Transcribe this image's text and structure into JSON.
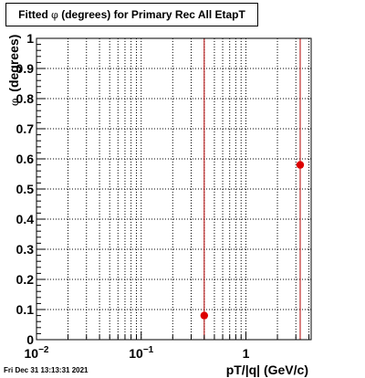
{
  "chart_data": {
    "type": "scatter",
    "title_prefix": "Fitted",
    "title_symbol": "φ",
    "title_suffix": "(degrees) for Primary Rec All EtapT",
    "xlabel": "pT/|q| (GeV/c)",
    "ylabel_symbol": "φ",
    "ylabel_suffix": "(degrees)",
    "x_scale": "log",
    "xlim": [
      0.01,
      4.2
    ],
    "ylim": [
      0,
      1
    ],
    "grid": true,
    "x_tick_labels": [
      {
        "value": 0.01,
        "base": "10",
        "exp": "−2"
      },
      {
        "value": 0.1,
        "base": "10",
        "exp": "−1"
      },
      {
        "value": 1,
        "base": "1",
        "exp": ""
      }
    ],
    "y_ticks": [
      0,
      0.1,
      0.2,
      0.3,
      0.4,
      0.5,
      0.6,
      0.7,
      0.8,
      0.9,
      1
    ],
    "y_tick_labels": [
      "0",
      "0.1",
      "0.2",
      "0.3",
      "0.4",
      "0.5",
      "0.6",
      "0.7",
      "0.8",
      "0.9",
      "1"
    ],
    "points": [
      {
        "x": 0.4,
        "y": 0.08
      },
      {
        "x": 3.3,
        "y": 0.58
      }
    ],
    "vertical_lines": [
      0.4,
      3.3
    ],
    "colors": {
      "points": "#dd0000",
      "lines": "#b40000",
      "axes": "#000000",
      "grid": "#000000"
    }
  },
  "footer": {
    "timestamp": "Fri Dec 31 13:13:31 2021"
  }
}
